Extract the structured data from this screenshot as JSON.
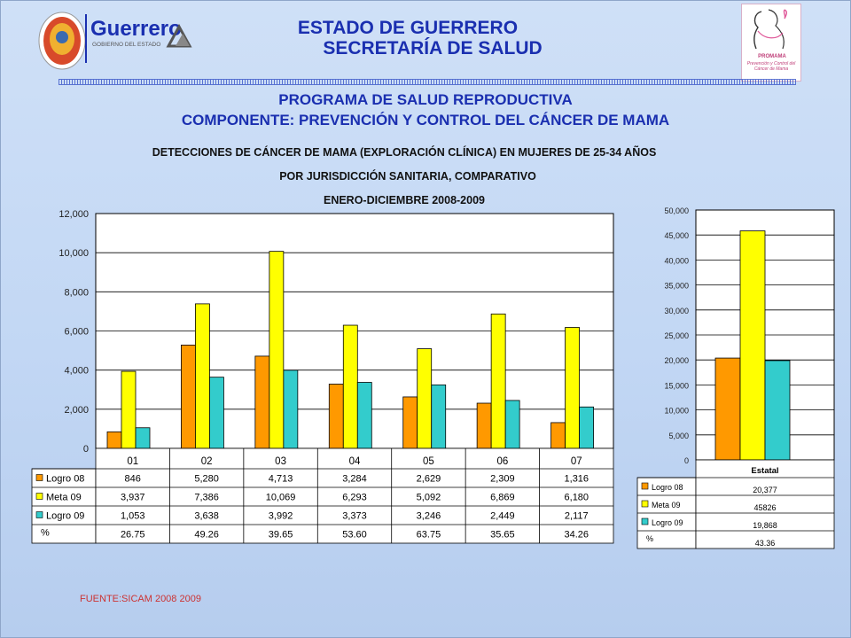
{
  "header": {
    "state_title": "ESTADO DE GUERRERO",
    "ministry_title": "SECRETARÍA DE SALUD",
    "program_title": "PROGRAMA DE SALUD REPRODUCTIVA",
    "component_title": "COMPONENTE: PREVENCIÓN Y CONTROL DEL CÁNCER DE MAMA",
    "subtitle_1": "DETECCIONES DE CÁNCER DE MAMA (EXPLORACIÓN CLÍNICA) EN MUJERES DE 25-34 AÑOS",
    "subtitle_2": "POR JURISDICCIÓN SANITARIA, COMPARATIVO",
    "subtitle_3": "ENERO-DICIEMBRE 2008-2009"
  },
  "logos": {
    "left_name": "Guerrero",
    "left_tagline": "GOBIERNO DEL ESTADO",
    "right_name": "PROMAMA",
    "right_tagline": "Prevención y Control del Cáncer de Mama"
  },
  "source": "FUENTE:SICAM  2008  2009",
  "colors": {
    "logro08": "#ff9900",
    "meta09": "#ffff00",
    "logro09": "#33cccc",
    "title_blue": "#1a2fb0"
  },
  "chart_data": [
    {
      "type": "bar",
      "categories": [
        "01",
        "02",
        "03",
        "04",
        "05",
        "06",
        "07"
      ],
      "series": [
        {
          "name": "Logro 08",
          "values": [
            846,
            5280,
            4713,
            3284,
            2629,
            2309,
            1316
          ],
          "labels": [
            "846",
            "5,280",
            "4,713",
            "3,284",
            "2,629",
            "2,309",
            "1,316"
          ]
        },
        {
          "name": "Meta 09",
          "values": [
            3937,
            7386,
            10069,
            6293,
            5092,
            6869,
            6180
          ],
          "labels": [
            "3,937",
            "7,386",
            "10,069",
            "6,293",
            "5,092",
            "6,869",
            "6,180"
          ]
        },
        {
          "name": "Logro 09",
          "values": [
            1053,
            3638,
            3992,
            3373,
            3246,
            2449,
            2117
          ],
          "labels": [
            "1,053",
            "3,638",
            "3,992",
            "3,373",
            "3,246",
            "2,449",
            "2,117"
          ]
        }
      ],
      "percent_row": {
        "name": "%",
        "labels": [
          "26.75",
          "49.26",
          "39.65",
          "53.60",
          "63.75",
          "35.65",
          "34.26"
        ]
      },
      "ylim": [
        0,
        12000
      ],
      "yticks": [
        0,
        2000,
        4000,
        6000,
        8000,
        10000,
        12000
      ],
      "ytick_labels": [
        "0",
        "2,000",
        "4,000",
        "6,000",
        "8,000",
        "10,000",
        "12,000"
      ],
      "grid": true
    },
    {
      "type": "bar",
      "categories": [
        "Estatal"
      ],
      "series": [
        {
          "name": "Logro 08",
          "values": [
            20377
          ],
          "labels": [
            "20,377"
          ]
        },
        {
          "name": "Meta 09",
          "values": [
            45826
          ],
          "labels": [
            "45826"
          ]
        },
        {
          "name": "Logro 09",
          "values": [
            19868
          ],
          "labels": [
            "19,868"
          ]
        }
      ],
      "percent_row": {
        "name": "%",
        "labels": [
          "43.36"
        ]
      },
      "ylim": [
        0,
        50000
      ],
      "yticks": [
        0,
        5000,
        10000,
        15000,
        20000,
        25000,
        30000,
        35000,
        40000,
        45000,
        50000
      ],
      "ytick_labels": [
        "0",
        "5,000",
        "10,000",
        "15,000",
        "20,000",
        "25,000",
        "30,000",
        "35,000",
        "40,000",
        "45,000",
        "50,000"
      ],
      "grid": true
    }
  ]
}
